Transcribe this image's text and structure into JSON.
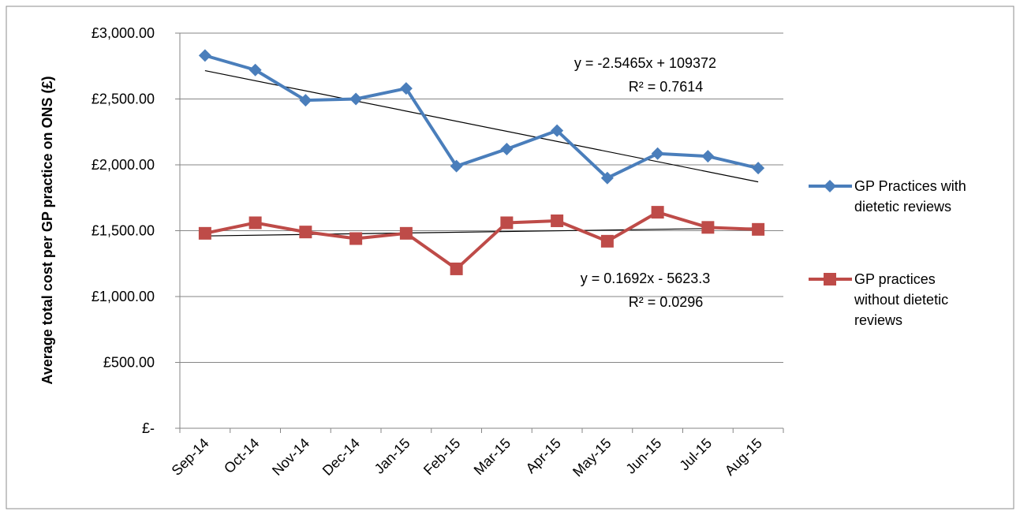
{
  "chart_data": {
    "type": "line",
    "y_label": "Average total cost per GP practice on ONS (£)",
    "categories": [
      "Sep-14",
      "Oct-14",
      "Nov-14",
      "Dec-14",
      "Jan-15",
      "Feb-15",
      "Mar-15",
      "Apr-15",
      "May-15",
      "Jun-15",
      "Jul-15",
      "Aug-15"
    ],
    "series": [
      {
        "name": "GP Practices with dietetic reviews",
        "color": "#4a7ebb",
        "marker": "diamond",
        "values": [
          2830,
          2720,
          2490,
          2500,
          2580,
          1990,
          2120,
          2260,
          1900,
          2085,
          2065,
          1975
        ]
      },
      {
        "name": "GP practices without dietetic reviews",
        "color": "#be4b48",
        "marker": "square",
        "values": [
          1480,
          1560,
          1490,
          1440,
          1480,
          1210,
          1560,
          1575,
          1420,
          1640,
          1525,
          1510
        ]
      }
    ],
    "trendline_annotations": [
      [
        "y = -2.5465x + 109372",
        "R² = 0.7614"
      ],
      [
        "y = 0.1692x - 5623.3",
        "R² = 0.0296"
      ]
    ],
    "ylim": [
      0,
      3000
    ],
    "yticks": [
      {
        "value": 0,
        "label": "£-"
      },
      {
        "value": 500,
        "label": "£500.00"
      },
      {
        "value": 1000,
        "label": "£1,000.00"
      },
      {
        "value": 1500,
        "label": "£1,500.00"
      },
      {
        "value": 2000,
        "label": "£2,000.00"
      },
      {
        "value": 2500,
        "label": "£2,500.00"
      },
      {
        "value": 3000,
        "label": "£3,000.00"
      }
    ],
    "grid": true,
    "legend": "right"
  }
}
